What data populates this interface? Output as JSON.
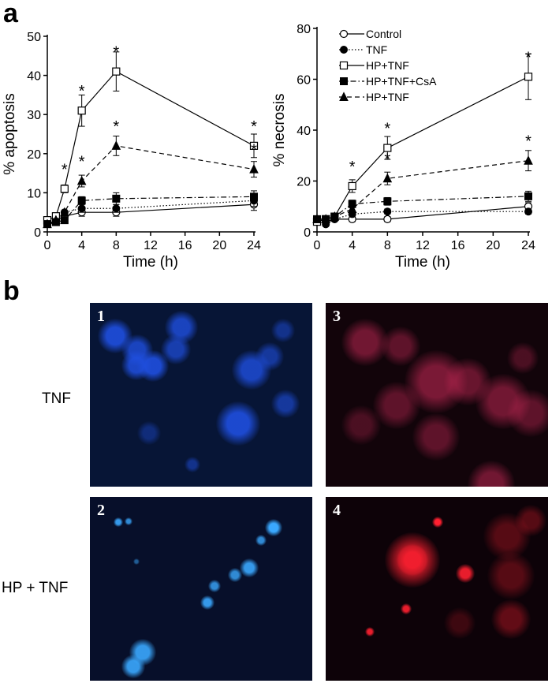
{
  "figure": {
    "panel_a_letter": "a",
    "panel_b_letter": "b"
  },
  "legend": {
    "entries": [
      "Control",
      "TNF",
      "HP+TNF",
      "HP+TNF+CsA",
      "HP+TNF"
    ]
  },
  "chart_data": [
    {
      "type": "line",
      "ylabel": "% apoptosis",
      "xlabel": "Time (h)",
      "xlim": [
        0,
        24
      ],
      "ylim": [
        0,
        50
      ],
      "x_ticks": [
        0,
        4,
        8,
        12,
        16,
        20,
        24
      ],
      "y_ticks": [
        0,
        10,
        20,
        30,
        40,
        50
      ],
      "series": [
        {
          "name": "Control",
          "marker": "circle-open",
          "dash": "solid",
          "x": [
            0,
            1,
            2,
            4,
            8,
            24
          ],
          "y": [
            2,
            3,
            4,
            5,
            5,
            7
          ],
          "err": [
            0,
            0,
            0,
            1,
            1,
            1.5
          ]
        },
        {
          "name": "TNF",
          "marker": "circle-filled",
          "dash": "dotted",
          "x": [
            0,
            1,
            2,
            4,
            8,
            24
          ],
          "y": [
            2,
            3,
            5,
            6,
            6,
            8
          ],
          "err": [
            0,
            0,
            0,
            1,
            1,
            1.5
          ]
        },
        {
          "name": "HP+TNF",
          "marker": "square-open",
          "dash": "solid",
          "x": [
            0,
            1,
            2,
            4,
            8,
            24
          ],
          "y": [
            3,
            4,
            11,
            31,
            41,
            22
          ],
          "err": [
            0,
            0,
            1,
            4,
            5,
            3
          ]
        },
        {
          "name": "HP+TNF+CsA",
          "marker": "square-filled",
          "dash": "dashdot",
          "x": [
            0,
            1,
            2,
            4,
            8,
            24
          ],
          "y": [
            2,
            2.5,
            3,
            8,
            8.5,
            9
          ],
          "err": [
            0,
            0,
            0,
            1,
            1.5,
            1.5
          ]
        },
        {
          "name": "HP+TNF",
          "marker": "triangle-filled",
          "dash": "dashed",
          "x": [
            0,
            1,
            2,
            4,
            8,
            24
          ],
          "y": [
            2,
            3,
            5,
            13,
            22,
            16
          ],
          "err": [
            0,
            0,
            0,
            1.5,
            2.5,
            2
          ]
        }
      ],
      "significance": [
        {
          "x": 2,
          "y": 11
        },
        {
          "x": 4,
          "y": 31
        },
        {
          "x": 8,
          "y": 41
        },
        {
          "x": 24,
          "y": 22
        },
        {
          "x": 4,
          "y": 13
        },
        {
          "x": 8,
          "y": 22
        },
        {
          "x": 24,
          "y": 16
        }
      ]
    },
    {
      "type": "line",
      "ylabel": "% necrosis",
      "xlabel": "Time (h)",
      "xlim": [
        0,
        24
      ],
      "ylim": [
        0,
        80
      ],
      "x_ticks": [
        0,
        4,
        8,
        12,
        16,
        20,
        24
      ],
      "y_ticks": [
        0,
        20,
        40,
        60,
        80
      ],
      "series": [
        {
          "name": "Control",
          "marker": "circle-open",
          "dash": "solid",
          "x": [
            0,
            1,
            2,
            4,
            8,
            24
          ],
          "y": [
            5,
            4,
            5,
            5,
            5,
            10
          ],
          "err": [
            0,
            0,
            0,
            1,
            1,
            1.5
          ]
        },
        {
          "name": "TNF",
          "marker": "circle-filled",
          "dash": "dotted",
          "x": [
            0,
            1,
            2,
            4,
            8,
            24
          ],
          "y": [
            5,
            3,
            5,
            7,
            8,
            8
          ],
          "err": [
            0,
            0,
            0,
            1,
            1,
            1
          ]
        },
        {
          "name": "HP+TNF",
          "marker": "square-open",
          "dash": "solid",
          "x": [
            0,
            1,
            2,
            4,
            8,
            24
          ],
          "y": [
            4,
            5,
            6,
            18,
            33,
            61
          ],
          "err": [
            0,
            0,
            0,
            2.5,
            4.5,
            9
          ]
        },
        {
          "name": "HP+TNF+CsA",
          "marker": "square-filled",
          "dash": "dashdot",
          "x": [
            0,
            1,
            2,
            4,
            8,
            24
          ],
          "y": [
            5,
            5,
            6,
            11,
            12,
            14
          ],
          "err": [
            0,
            0,
            0,
            1.5,
            1.5,
            2
          ]
        },
        {
          "name": "HP+TNF",
          "marker": "triangle-filled",
          "dash": "dashed",
          "x": [
            0,
            1,
            2,
            4,
            8,
            24
          ],
          "y": [
            5,
            5,
            6,
            9,
            21,
            28
          ],
          "err": [
            0,
            0,
            0,
            1,
            2.5,
            4
          ]
        }
      ],
      "significance": [
        {
          "x": 4,
          "y": 18
        },
        {
          "x": 8,
          "y": 33
        },
        {
          "x": 8,
          "y": 21
        },
        {
          "x": 24,
          "y": 61
        },
        {
          "x": 24,
          "y": 28
        }
      ]
    }
  ],
  "micrographs": {
    "row_labels": [
      "TNF",
      "HP + TNF"
    ],
    "panels": [
      {
        "number": "1",
        "stain_color": "#1f4fe0"
      },
      {
        "number": "3",
        "stain_color": "#d02a5a"
      },
      {
        "number": "2",
        "stain_color": "#3aa8ff"
      },
      {
        "number": "4",
        "stain_color": "#ff2030"
      }
    ]
  }
}
